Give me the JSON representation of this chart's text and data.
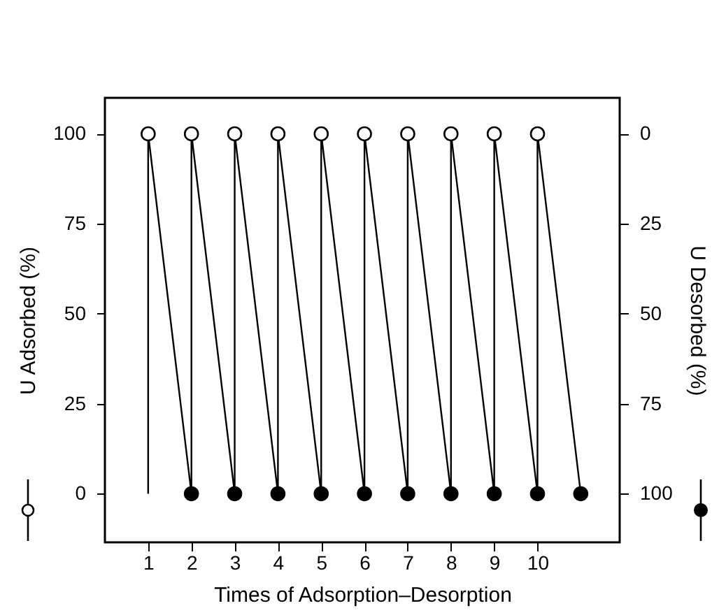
{
  "chart_data": {
    "type": "scatter",
    "xlabel": "Times of Adsorption–Desorption",
    "ylabel": "U Adsorbed (%)",
    "y2label": "U Desorbed (%)",
    "xlim": [
      0,
      11.9
    ],
    "xticks": [
      1,
      2,
      3,
      4,
      5,
      6,
      7,
      8,
      9,
      10
    ],
    "ylim": [
      -13.5,
      110
    ],
    "yticks": [
      0,
      25,
      50,
      75,
      100
    ],
    "y2lim": [
      113.5,
      -10
    ],
    "y2ticks": [
      0,
      25,
      50,
      75,
      100
    ],
    "grid": false,
    "marker": "circle",
    "series": [
      {
        "type": "line",
        "color": "#000000",
        "marker": "none",
        "x": [
          1,
          1,
          2,
          2,
          3,
          3,
          4,
          4,
          5,
          5,
          6,
          6,
          7,
          7,
          8,
          8,
          9,
          9,
          10,
          10,
          11
        ],
        "values": [
          0,
          100,
          0,
          100,
          0,
          100,
          0,
          100,
          0,
          100,
          0,
          100,
          0,
          100,
          0,
          100,
          0,
          100,
          0,
          100,
          0
        ]
      },
      {
        "color": "#ffffff",
        "x": [
          1,
          2,
          3,
          4,
          5,
          6,
          7,
          8,
          9,
          10
        ],
        "values": [
          100,
          100,
          100,
          100,
          100,
          100,
          100,
          100,
          100,
          100
        ]
      },
      {
        "color": "#000000",
        "axis": "y2",
        "x": [
          2,
          3,
          4,
          5,
          6,
          7,
          8,
          9,
          10,
          11
        ],
        "values": [
          100,
          100,
          100,
          100,
          100,
          100,
          100,
          100,
          100,
          100
        ]
      }
    ]
  }
}
